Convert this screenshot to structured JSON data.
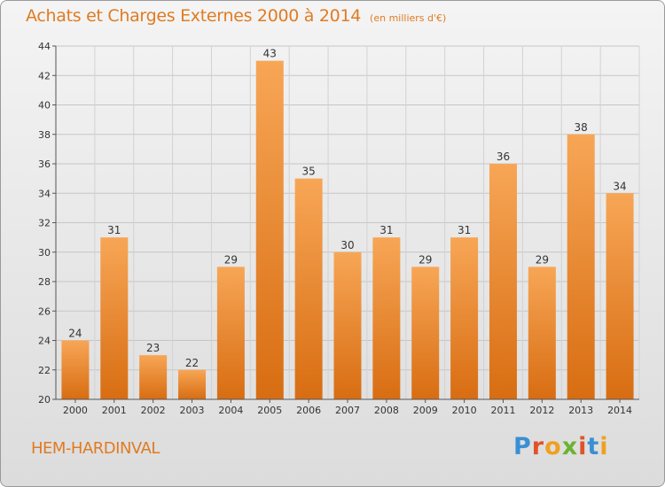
{
  "header": {
    "title": "Achats et Charges Externes 2000 à 2014",
    "subtitle": "(en milliers d'€)"
  },
  "footer": {
    "location": "HEM-HARDINVAL",
    "logo_text": "Proxiti"
  },
  "colors": {
    "accent": "#e07b22",
    "bar_top": "#f7a656",
    "bar_bottom": "#d86d12"
  },
  "chart_data": {
    "type": "bar",
    "categories": [
      "2000",
      "2001",
      "2002",
      "2003",
      "2004",
      "2005",
      "2006",
      "2007",
      "2008",
      "2009",
      "2010",
      "2011",
      "2012",
      "2013",
      "2014"
    ],
    "values": [
      24,
      31,
      23,
      22,
      29,
      43,
      35,
      30,
      31,
      29,
      31,
      36,
      29,
      38,
      34
    ],
    "title": "Achats et Charges Externes 2000 à 2014",
    "subtitle": "(en milliers d'€)",
    "xlabel": "",
    "ylabel": "",
    "ylim": [
      20,
      44
    ],
    "yticks": [
      20,
      22,
      24,
      26,
      28,
      30,
      32,
      34,
      36,
      38,
      40,
      42,
      44
    ],
    "grid": true,
    "data_labels": true
  }
}
